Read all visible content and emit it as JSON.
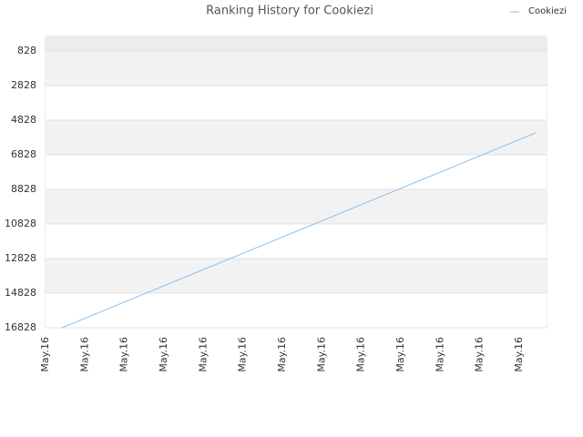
{
  "chart_data": {
    "type": "line",
    "title": "Ranking History for Cookiezi",
    "categories": [
      "May.16",
      "May.16",
      "May.16",
      "May.16",
      "May.16",
      "May.16",
      "May.16",
      "May.16",
      "May.16",
      "May.16",
      "May.16",
      "May.16",
      "May.16"
    ],
    "series": [
      {
        "name": "Cookiezi",
        "color": "#88c0f0",
        "values": [
          16828,
          15889,
          14951,
          14012,
          13074,
          12135,
          11197,
          10258,
          9320,
          8381,
          7443,
          6504,
          5565
        ]
      }
    ],
    "ylim": [
      16828,
      -14
    ],
    "yticks": [
      828,
      2828,
      4828,
      6828,
      8828,
      10828,
      12828,
      14828,
      16828
    ],
    "grid": true,
    "legend": "top-right"
  }
}
